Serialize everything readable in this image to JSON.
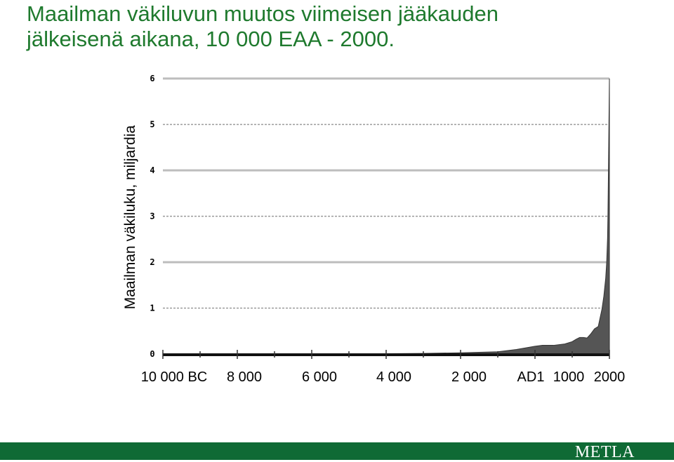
{
  "slide": {
    "title_line1": "Maailman väkiluvun muutos viimeisen jääkauden",
    "title_line2": "jälkeisenä aikana, 10 000 EAA - 2000.",
    "title_color": "#1f7a2e"
  },
  "footer": {
    "logo_text": "METLA",
    "bar_color": "#0f6a35"
  },
  "chart_data": {
    "type": "area",
    "title": "",
    "ylabel": "Maailman väkiluku, miljardia",
    "xlabel": "",
    "ylim": [
      0,
      6
    ],
    "yticks": [
      "0",
      "1",
      "2",
      "3",
      "4",
      "5",
      "6"
    ],
    "xlim": [
      -10000,
      2000
    ],
    "x_tick_labels": [
      "10 000 BC",
      "8 000",
      "6 000",
      "4 000",
      "2 000",
      "AD1",
      "1000",
      "2000"
    ],
    "grid": true,
    "fill_color": "#555555",
    "series": [
      {
        "x": [
          -10000,
          -8000,
          -6000,
          -4000,
          -3000,
          -2000,
          -1000,
          -500,
          1,
          200,
          500,
          800,
          1000,
          1100,
          1200,
          1300,
          1400,
          1500,
          1600,
          1700,
          1750,
          1800,
          1850,
          1900,
          1927,
          1950,
          1960,
          1974,
          1987,
          2000
        ],
        "y": [
          0.004,
          0.005,
          0.005,
          0.007,
          0.014,
          0.027,
          0.05,
          0.1,
          0.17,
          0.19,
          0.19,
          0.22,
          0.27,
          0.32,
          0.36,
          0.36,
          0.35,
          0.44,
          0.55,
          0.6,
          0.79,
          0.98,
          1.26,
          1.65,
          2.0,
          2.52,
          3.0,
          4.0,
          5.0,
          6.0
        ]
      }
    ]
  }
}
